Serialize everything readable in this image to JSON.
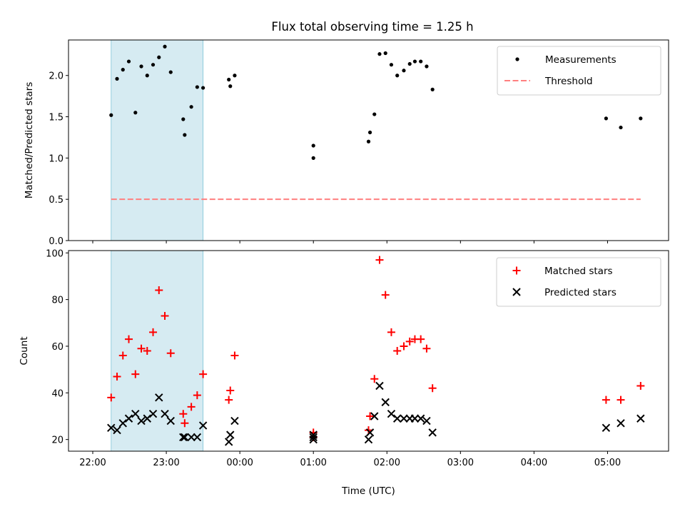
{
  "figure": {
    "title": "Flux total observing time = 1.25 h"
  },
  "chart_data": [
    {
      "type": "scatter",
      "title": "Flux total observing time = 1.25 h",
      "xlabel": "",
      "ylabel": "Matched/Predicted stars",
      "xlim": [
        -0.33,
        7.83
      ],
      "ylim": [
        0.0,
        2.43
      ],
      "yticks": [
        0.0,
        0.5,
        1.0,
        1.5,
        2.0
      ],
      "ytick_labels": [
        "0.0",
        "0.5",
        "1.0",
        "1.5",
        "2.0"
      ],
      "xticks": [
        0,
        1,
        2,
        3,
        4,
        5,
        6,
        7
      ],
      "xtick_labels": [],
      "shaded_region": {
        "x0": 0.25,
        "x1": 1.5,
        "color": "#add8e6"
      },
      "legend_position": "upper right",
      "series": [
        {
          "name": "Measurements",
          "kind": "points",
          "color": "#000000",
          "x": [
            0.25,
            0.33,
            0.41,
            0.49,
            0.58,
            0.66,
            0.74,
            0.82,
            0.9,
            0.98,
            1.06,
            1.23,
            1.25,
            1.34,
            1.42,
            1.5,
            1.85,
            1.87,
            1.93,
            3.0,
            3.0,
            3.75,
            3.77,
            3.83,
            3.9,
            3.98,
            4.06,
            4.14,
            4.23,
            4.31,
            4.38,
            4.46,
            4.54,
            4.62,
            4.7,
            6.98,
            7.18,
            7.45
          ],
          "y": [
            1.52,
            1.96,
            2.07,
            2.17,
            1.55,
            2.11,
            2.0,
            2.13,
            2.22,
            2.35,
            2.04,
            1.47,
            1.28,
            1.62,
            1.86,
            1.85,
            1.95,
            1.87,
            2.0,
            1.0,
            1.15,
            1.2,
            1.31,
            1.53,
            2.26,
            2.27,
            2.13,
            2.0,
            2.06,
            2.14,
            2.17,
            2.17,
            2.11,
            1.83,
            null,
            1.48,
            1.37,
            1.48
          ]
        },
        {
          "name": "Threshold",
          "kind": "dashed-line",
          "color": "#ff7f7f",
          "x": [
            0.25,
            7.45
          ],
          "y": [
            0.5,
            0.5
          ]
        }
      ]
    },
    {
      "type": "scatter",
      "title": "",
      "xlabel": "Time (UTC)",
      "ylabel": "Count",
      "xlim": [
        -0.33,
        7.83
      ],
      "ylim": [
        15,
        101
      ],
      "yticks": [
        20,
        40,
        60,
        80,
        100
      ],
      "ytick_labels": [
        "20",
        "40",
        "60",
        "80",
        "100"
      ],
      "xticks": [
        0,
        1,
        2,
        3,
        4,
        5,
        6,
        7
      ],
      "xtick_labels": [
        "22:00",
        "23:00",
        "00:00",
        "01:00",
        "02:00",
        "03:00",
        "04:00",
        "05:00"
      ],
      "shaded_region": {
        "x0": 0.25,
        "x1": 1.5,
        "color": "#add8e6"
      },
      "legend_position": "upper right",
      "series": [
        {
          "name": "Matched stars",
          "kind": "plus",
          "color": "#ff0000",
          "x": [
            0.25,
            0.33,
            0.41,
            0.49,
            0.58,
            0.66,
            0.74,
            0.82,
            0.9,
            0.98,
            1.06,
            1.23,
            1.25,
            1.34,
            1.42,
            1.5,
            1.85,
            1.87,
            1.93,
            3.0,
            3.0,
            3.75,
            3.77,
            3.83,
            3.9,
            3.98,
            4.06,
            4.14,
            4.23,
            4.31,
            4.38,
            4.46,
            4.54,
            4.62,
            6.98,
            7.18,
            7.45
          ],
          "y": [
            38,
            47,
            56,
            63,
            48,
            59,
            58,
            66,
            84,
            73,
            57,
            31,
            27,
            34,
            39,
            48,
            37,
            41,
            56,
            21,
            23,
            24,
            30,
            46,
            97,
            82,
            66,
            58,
            60,
            62,
            63,
            63,
            59,
            42,
            37,
            37,
            43
          ]
        },
        {
          "name": "Predicted stars",
          "kind": "x",
          "color": "#000000",
          "x": [
            0.25,
            0.33,
            0.41,
            0.49,
            0.58,
            0.66,
            0.74,
            0.82,
            0.9,
            0.98,
            1.06,
            1.23,
            1.25,
            1.34,
            1.42,
            1.5,
            1.85,
            1.87,
            1.93,
            3.0,
            3.0,
            3.0,
            3.75,
            3.77,
            3.83,
            3.9,
            3.98,
            4.06,
            4.14,
            4.23,
            4.31,
            4.38,
            4.46,
            4.54,
            4.62,
            6.98,
            7.18,
            7.45
          ],
          "y": [
            25,
            24,
            27,
            29,
            31,
            28,
            29,
            31,
            38,
            31,
            28,
            21,
            21,
            21,
            21,
            26,
            19,
            22,
            28,
            20,
            21,
            22,
            20,
            23,
            30,
            43,
            36,
            31,
            29,
            29,
            29,
            29,
            29,
            28,
            23,
            25,
            27,
            29
          ]
        }
      ]
    }
  ]
}
